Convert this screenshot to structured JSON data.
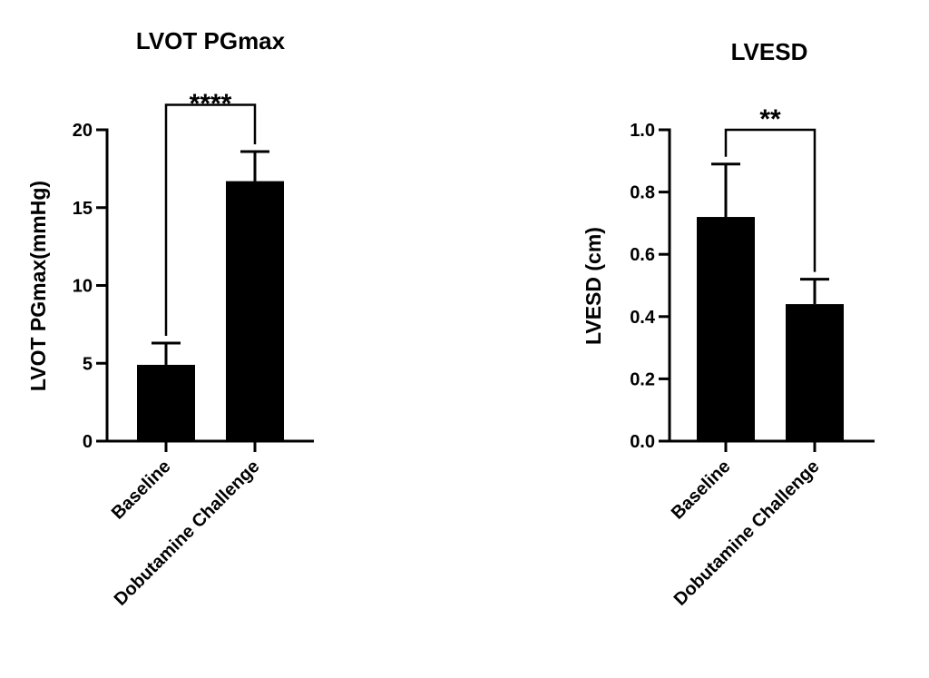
{
  "chart_data": [
    {
      "type": "bar",
      "title": "LVOT PGmax",
      "ylabel": "LVOT PGmax(mmHg)",
      "xlabel": "",
      "categories": [
        "Baseline",
        "Dobutamine Challenge"
      ],
      "values": [
        4.9,
        16.7
      ],
      "errors": [
        1.4,
        1.9
      ],
      "ylim": [
        0,
        20
      ],
      "yticks": [
        0,
        5,
        10,
        15,
        20
      ],
      "ytick_labels": [
        "0",
        "5",
        "10",
        "15",
        "20"
      ],
      "significance": "****",
      "bracket_top": 21.6
    },
    {
      "type": "bar",
      "title": "LVESD",
      "ylabel": "LVESD (cm)",
      "xlabel": "",
      "categories": [
        "Baseline",
        "Dobutamine Challenge"
      ],
      "values": [
        0.72,
        0.44
      ],
      "errors": [
        0.17,
        0.08
      ],
      "ylim": [
        0,
        1.0
      ],
      "yticks": [
        0,
        0.2,
        0.4,
        0.6,
        0.8,
        1.0
      ],
      "ytick_labels": [
        "0.0",
        "0.2",
        "0.4",
        "0.6",
        "0.8",
        "1.0"
      ],
      "significance": "**",
      "bracket_top": 1.0
    }
  ]
}
